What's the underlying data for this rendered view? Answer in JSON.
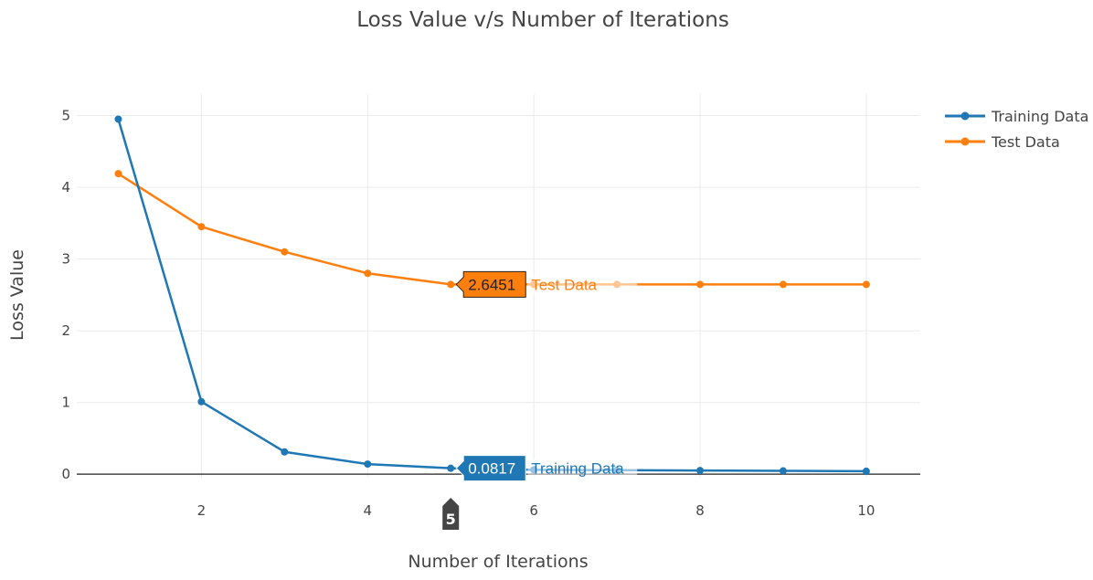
{
  "chart_data": {
    "type": "line",
    "title": "Loss Value v/s Number of Iterations",
    "xlabel": "Number of Iterations",
    "ylabel": "Loss Value",
    "xlim": [
      0.5,
      10.65
    ],
    "ylim": [
      -0.05,
      5.3
    ],
    "x_ticks": [
      2,
      4,
      6,
      8,
      10
    ],
    "y_ticks": [
      0,
      1,
      2,
      3,
      4,
      5
    ],
    "grid": true,
    "legend_position": "top-right",
    "x": [
      1,
      2,
      3,
      4,
      5,
      6,
      7,
      8,
      9,
      10
    ],
    "series": [
      {
        "name": "Training Data",
        "color": "#1f77b4",
        "values": [
          4.95,
          1.01,
          0.31,
          0.14,
          0.0817,
          0.06,
          0.055,
          0.05,
          0.045,
          0.04
        ]
      },
      {
        "name": "Test Data",
        "color": "#ff7f0e",
        "values": [
          4.19,
          3.45,
          3.1,
          2.8,
          2.6451,
          2.645,
          2.645,
          2.645,
          2.645,
          2.645
        ]
      }
    ],
    "hover": {
      "x_label": "5",
      "labels": [
        {
          "series": "Test Data",
          "value": "2.6451",
          "name": "Test Data"
        },
        {
          "series": "Training Data",
          "value": "0.0817",
          "name": "Training Data"
        }
      ]
    }
  }
}
